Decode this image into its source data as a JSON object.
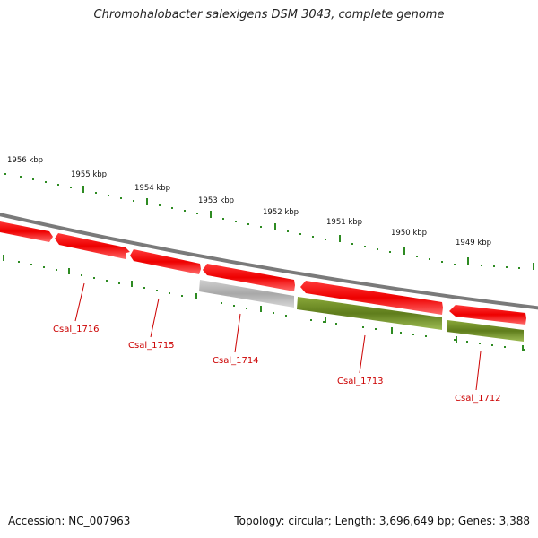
{
  "title": "Chromohalobacter salexigens DSM 3043, complete genome",
  "footer": {
    "accession": "Accession: NC_007963",
    "summary": "Topology: circular; Length: 3,696,649 bp; Genes: 3,388"
  },
  "colors": {
    "backbone": "#7a7a7a",
    "gene_forward": "#ff0000",
    "gene_reverse_green": "#6b8e23",
    "gene_grey": "#b0b0b0",
    "tick_green": "#2e8b22",
    "label_red": "#cc0000"
  },
  "scale_labels": [
    "1956 kbp",
    "1955 kbp",
    "1954 kbp",
    "1953 kbp",
    "1952 kbp",
    "1951 kbp",
    "1950 kbp",
    "1949 kbp"
  ],
  "genes": [
    {
      "label": "Csal_1716",
      "strand": "forward",
      "color": "red"
    },
    {
      "label": "Csal_1715",
      "strand": "forward",
      "color": "red"
    },
    {
      "label": "Csal_1714",
      "strand": "forward",
      "color": "red"
    },
    {
      "label": "Csal_1713",
      "strand": "forward",
      "color": "red"
    },
    {
      "label": "Csal_1712",
      "strand": "forward",
      "color": "red"
    }
  ],
  "lower_features": [
    {
      "color": "grey"
    },
    {
      "color": "green"
    },
    {
      "color": "green"
    }
  ]
}
